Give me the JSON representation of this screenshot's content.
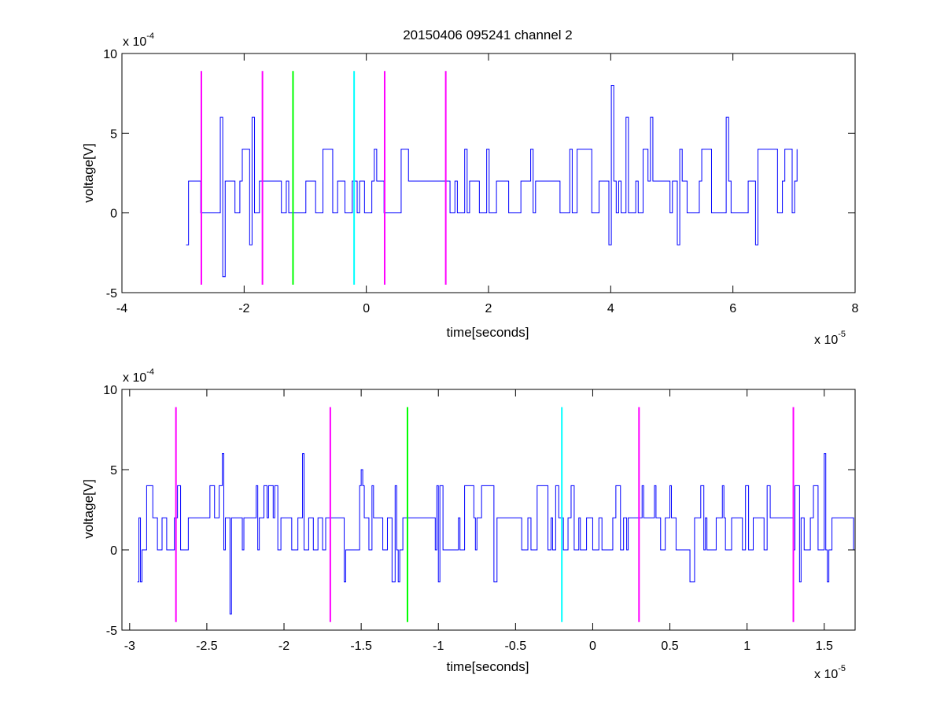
{
  "figure": {
    "title": "20150406 095241 channel 2"
  },
  "colors": {
    "signal": "#0000ff",
    "magenta": "#ff00ff",
    "green": "#00ff00",
    "cyan": "#00ffff",
    "axis": "#000000"
  },
  "chart_data": [
    {
      "type": "line",
      "title": "20150406 095241 channel 2",
      "xlabel": "time[seconds]",
      "ylabel": "voltage[V]",
      "x_exponent": "x 10",
      "x_exponent_power": "-5",
      "y_exponent": "x 10",
      "y_exponent_power": "-4",
      "xlim": [
        -4,
        8
      ],
      "ylim": [
        -5,
        10
      ],
      "xticks": [
        "-4",
        "-2",
        "0",
        "2",
        "4",
        "6",
        "8"
      ],
      "yticks": [
        "-5",
        "0",
        "5",
        "10"
      ],
      "series": [
        {
          "color": "#0000ff",
          "x_range": [
            -2.95,
            7.05
          ],
          "sample_step": 0.04,
          "seed": 11,
          "spikes": [
            {
              "x": -2.38,
              "y": 6
            },
            {
              "x": -1.87,
              "y": 6
            },
            {
              "x": -2.35,
              "y": -4
            },
            {
              "x": 4.0,
              "y": 8
            },
            {
              "x": 4.67,
              "y": 6
            },
            {
              "x": 5.88,
              "y": 6
            },
            {
              "x": 4.27,
              "y": 6
            }
          ]
        }
      ],
      "markers": [
        {
          "x": -2.7,
          "color": "#ff00ff"
        },
        {
          "x": -1.7,
          "color": "#ff00ff"
        },
        {
          "x": -1.2,
          "color": "#00ff00"
        },
        {
          "x": -0.2,
          "color": "#00ffff"
        },
        {
          "x": 0.3,
          "color": "#ff00ff"
        },
        {
          "x": 1.3,
          "color": "#ff00ff"
        }
      ],
      "marker_yrange": [
        -4.5,
        8.9
      ]
    },
    {
      "type": "line",
      "title": "",
      "xlabel": "time[seconds]",
      "ylabel": "voltage[V]",
      "x_exponent": "x 10",
      "x_exponent_power": "-5",
      "y_exponent": "x 10",
      "y_exponent_power": "-4",
      "xlim": [
        -3.05,
        1.7
      ],
      "ylim": [
        -5,
        10
      ],
      "xticks": [
        "-3",
        "-2.5",
        "-2",
        "-1.5",
        "-1",
        "-0.5",
        "0",
        "0.5",
        "1",
        "1.5"
      ],
      "xtick_values": [
        -3,
        -2.5,
        -2,
        -1.5,
        -1,
        -0.5,
        0,
        0.5,
        1,
        1.5
      ],
      "yticks": [
        "-5",
        "0",
        "5",
        "10"
      ],
      "series": [
        {
          "color": "#0000ff",
          "x_range": [
            -2.95,
            1.7
          ],
          "sample_step": 0.01,
          "seed": 7,
          "spikes": [
            {
              "x": -2.4,
              "y": 6
            },
            {
              "x": -2.35,
              "y": -4
            },
            {
              "x": -1.88,
              "y": 6
            },
            {
              "x": -1.5,
              "y": 5
            },
            {
              "x": 1.5,
              "y": 6
            }
          ]
        }
      ],
      "markers": [
        {
          "x": -2.7,
          "color": "#ff00ff"
        },
        {
          "x": -1.7,
          "color": "#ff00ff"
        },
        {
          "x": -1.2,
          "color": "#00ff00"
        },
        {
          "x": -0.2,
          "color": "#00ffff"
        },
        {
          "x": 0.3,
          "color": "#ff00ff"
        },
        {
          "x": 1.3,
          "color": "#ff00ff"
        }
      ],
      "marker_yrange": [
        -4.5,
        8.9
      ]
    }
  ]
}
